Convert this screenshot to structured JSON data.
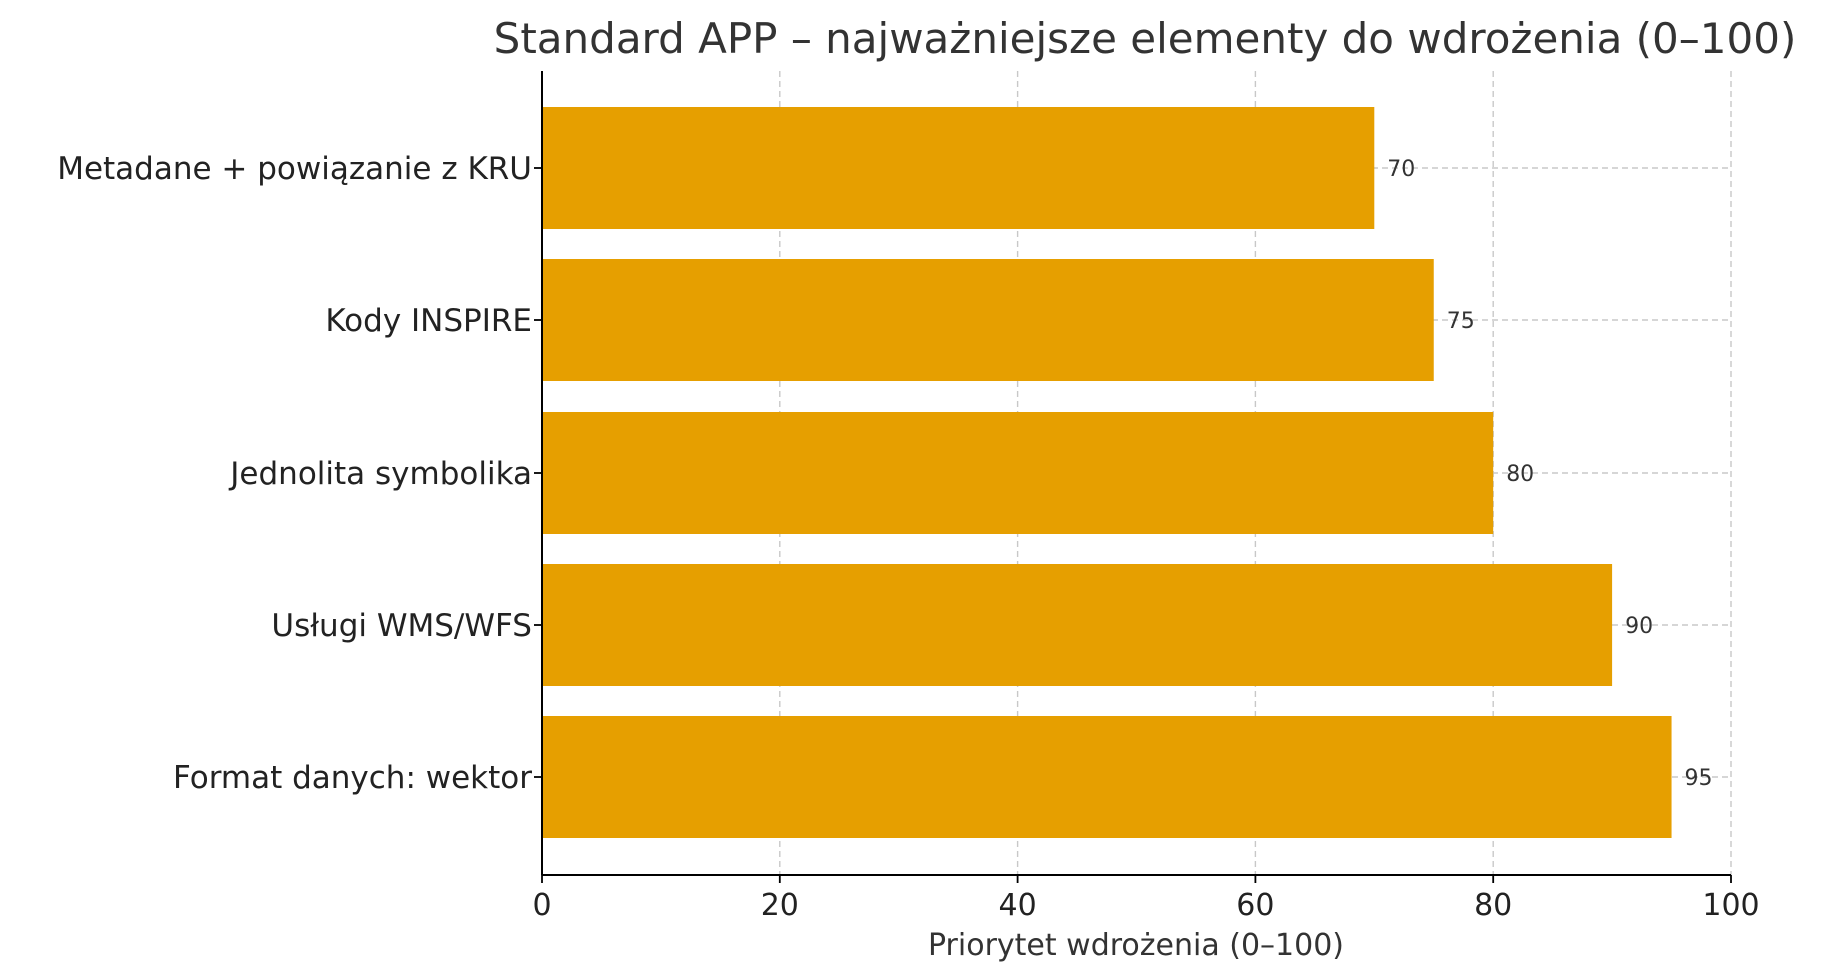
{
  "chart_data": {
    "type": "bar",
    "orientation": "horizontal",
    "title": "Standard APP – najważniejsze elementy do wdrożenia (0–100)",
    "xlabel": "Priorytet wdrożenia (0–100)",
    "ylabel": "",
    "categories": [
      "Metadane + powiązanie z KRU",
      "Kody INSPIRE",
      "Jednolita symbolika",
      "Usługi WMS/WFS",
      "Format danych: wektor"
    ],
    "values": [
      70,
      75,
      80,
      90,
      95
    ],
    "data_labels": [
      "70",
      "75",
      "80",
      "90",
      "95"
    ],
    "xlim": [
      0,
      100
    ],
    "x_ticks": [
      0,
      20,
      40,
      60,
      80,
      100
    ],
    "x_tick_labels": [
      "0",
      "20",
      "40",
      "60",
      "80",
      "100"
    ],
    "grid": true,
    "bar_color": "#E69F00"
  }
}
